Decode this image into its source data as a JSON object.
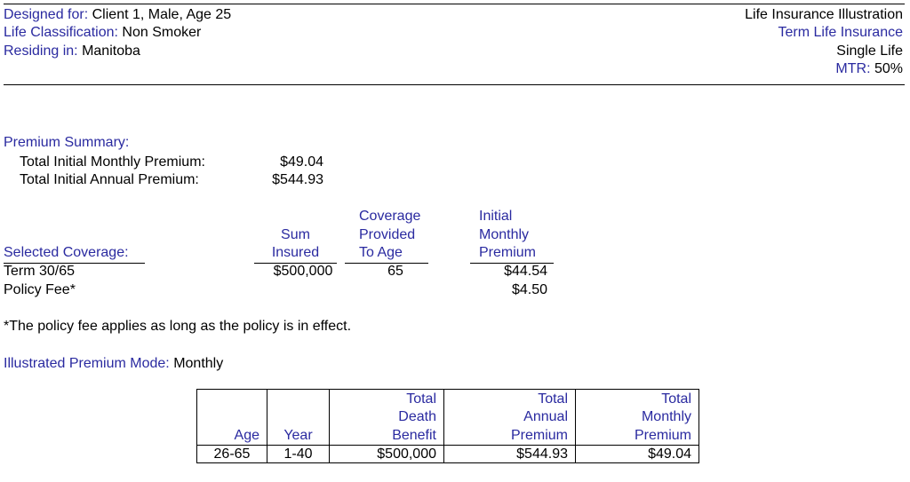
{
  "header": {
    "designed_label": "Designed for:",
    "designed_value": "Client 1, Male, Age 25",
    "classification_label": "Life Classification:",
    "classification_value": "Non Smoker",
    "residing_label": "Residing in:",
    "residing_value": "Manitoba",
    "illustration_title": "Life Insurance Illustration",
    "product": "Term Life Insurance",
    "life_type": "Single Life",
    "mtr_label": "MTR:",
    "mtr_value": "50%"
  },
  "premium_summary": {
    "heading": "Premium Summary:",
    "monthly_label": "Total Initial Monthly Premium:",
    "monthly_value": "$49.04",
    "annual_label": "Total Initial Annual Premium:",
    "annual_value": "$544.93"
  },
  "coverage": {
    "heading": "Selected Coverage:",
    "sum_header": [
      "Sum",
      "Insured"
    ],
    "age_header": [
      "Coverage",
      "Provided",
      "To Age"
    ],
    "premium_header": [
      "Initial",
      "Monthly",
      "Premium"
    ],
    "rows": [
      {
        "name": "Term 30/65",
        "sum": "$500,000",
        "to_age": "65",
        "premium": "$44.54"
      },
      {
        "name": "Policy Fee*",
        "sum": "",
        "to_age": "",
        "premium": "$4.50"
      }
    ]
  },
  "footnote": "*The policy fee applies as long as the policy is in effect.",
  "premium_mode": {
    "label": "Illustrated Premium Mode:",
    "value": "Monthly"
  },
  "premium_table": {
    "headers": [
      [
        "Age"
      ],
      [
        "Year"
      ],
      [
        "Total",
        "Death",
        "Benefit"
      ],
      [
        "Total",
        "Annual",
        "Premium"
      ],
      [
        "Total",
        "Monthly",
        "Premium"
      ]
    ],
    "rows": [
      [
        "26-65",
        "1-40",
        "$500,000",
        "$544.93",
        "$49.04"
      ]
    ]
  }
}
